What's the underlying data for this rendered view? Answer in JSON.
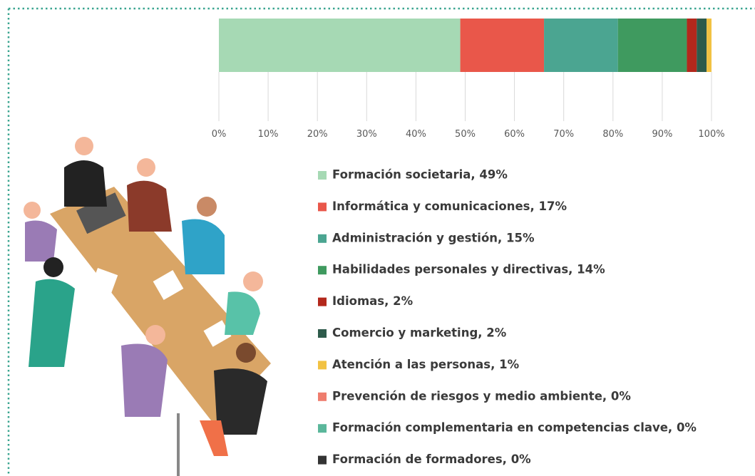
{
  "chart_data": {
    "type": "bar",
    "orientation": "horizontal",
    "stacked": true,
    "xlim": [
      0,
      100
    ],
    "xticks": [
      {
        "value": 0,
        "label": "0%"
      },
      {
        "value": 10,
        "label": "10%"
      },
      {
        "value": 20,
        "label": "20%"
      },
      {
        "value": 30,
        "label": "30%"
      },
      {
        "value": 40,
        "label": "40%"
      },
      {
        "value": 50,
        "label": "50%"
      },
      {
        "value": 60,
        "label": "60%"
      },
      {
        "value": 70,
        "label": "70%"
      },
      {
        "value": 80,
        "label": "80%"
      },
      {
        "value": 90,
        "label": "90%"
      },
      {
        "value": 100,
        "label": "100%"
      }
    ],
    "grid": true,
    "series": [
      {
        "name": "Formación societaria, 49%",
        "color": "#a6d9b4",
        "values": [
          49
        ]
      },
      {
        "name": "Informática y comunicaciones, 17%",
        "color": "#e9574a",
        "values": [
          17
        ]
      },
      {
        "name": "Administración y gestión, 15%",
        "color": "#4ba591",
        "values": [
          15
        ]
      },
      {
        "name": "Habilidades personales y directivas, 14%",
        "color": "#3f9a5f",
        "values": [
          14
        ]
      },
      {
        "name": "Idiomas, 2%",
        "color": "#b3281c",
        "values": [
          2
        ]
      },
      {
        "name": "Comercio y marketing, 2%",
        "color": "#2e5b4b",
        "values": [
          2
        ]
      },
      {
        "name": "Atención a las personas, 1%",
        "color": "#f2c243",
        "values": [
          1
        ]
      },
      {
        "name": "Prevención de riesgos y medio ambiente, 0%",
        "color": "#ef7d6e",
        "values": [
          0
        ]
      },
      {
        "name": "Formación complementaria en competencias clave, 0%",
        "color": "#5bb79b",
        "values": [
          0
        ]
      },
      {
        "name": "Formación de formadores, 0%",
        "color": "#333333",
        "values": [
          0
        ]
      }
    ]
  }
}
